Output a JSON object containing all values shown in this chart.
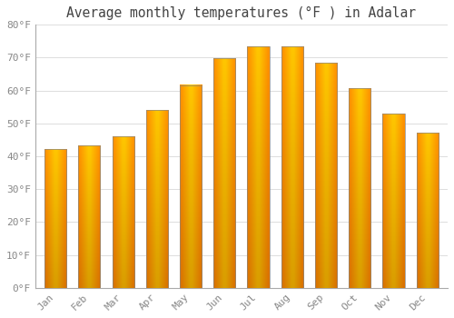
{
  "title": "Average monthly temperatures (°F ) in Adalar",
  "months": [
    "Jan",
    "Feb",
    "Mar",
    "Apr",
    "May",
    "Jun",
    "Jul",
    "Aug",
    "Sep",
    "Oct",
    "Nov",
    "Dec"
  ],
  "values": [
    42.2,
    43.3,
    46.0,
    54.0,
    61.7,
    69.8,
    73.4,
    73.4,
    68.5,
    60.6,
    52.9,
    47.1
  ],
  "bar_color_light": "#FFB020",
  "bar_color_dark": "#E87800",
  "bar_edge_color": "#888888",
  "background_color": "#FFFFFF",
  "plot_bg_color": "#FFFFFF",
  "ylim": [
    0,
    80
  ],
  "yticks": [
    0,
    10,
    20,
    30,
    40,
    50,
    60,
    70,
    80
  ],
  "ytick_labels": [
    "0°F",
    "10°F",
    "20°F",
    "30°F",
    "40°F",
    "50°F",
    "60°F",
    "70°F",
    "80°F"
  ],
  "grid_color": "#DDDDDD",
  "tick_label_color": "#888888",
  "title_color": "#444444",
  "title_fontsize": 10.5,
  "tick_fontsize": 8
}
